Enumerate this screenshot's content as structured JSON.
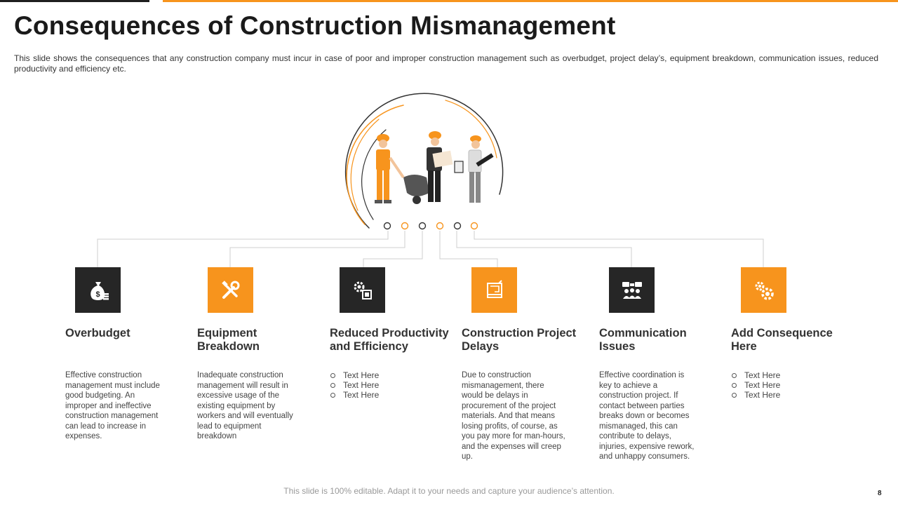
{
  "slide": {
    "title": "Consequences of Construction Mismanagement",
    "subtitle": "This slide shows the consequences that any construction company must incur in case of poor and improper construction management such as overbudget,  project delay’s, equipment breakdown, communication issues, reduced productivity and efficiency etc.",
    "footer": "This slide is 100% editable. Adapt it to your needs and capture your audience’s attention.",
    "page_number": "8"
  },
  "colors": {
    "accent": "#f7941d",
    "dark": "#262626"
  },
  "hero": {
    "illustration": "construction-workers-illustration"
  },
  "consequences": [
    {
      "title": "Overbudget",
      "icon": "money-bag-icon",
      "box": "dark",
      "text": "Effective construction management must include good budgeting. An improper and ineffective construction management can lead to increase in expenses."
    },
    {
      "title": "Equipment Breakdown",
      "icon": "tools-icon",
      "box": "orange",
      "text": "Inadequate construction management will result in excessive usage of the existing equipment by workers and will eventually lead to equipment breakdown"
    },
    {
      "title": "Reduced Productivity and Efficiency",
      "icon": "gear-chip-icon",
      "box": "dark",
      "bullets": [
        "Text Here",
        "Text Here",
        "Text Here"
      ]
    },
    {
      "title": "Construction Project Delays",
      "icon": "blueprint-icon",
      "box": "orange",
      "text": "Due to construction mismanagement, there would be delays in procurement of the project materials. And that means losing profits, of course, as you pay more for man-hours, and the expenses will creep up."
    },
    {
      "title": "Communication Issues",
      "icon": "team-chat-icon",
      "box": "dark",
      "text": "Effective coordination is key to achieve a construction project. If contact between parties breaks down or becomes mismanaged, this can contribute to delays, injuries, expensive rework, and unhappy consumers."
    },
    {
      "title": "Add Consequence Here",
      "icon": "gears-icon",
      "box": "orange",
      "bullets": [
        "Text Here",
        "Text Here",
        "Text Here"
      ]
    }
  ]
}
